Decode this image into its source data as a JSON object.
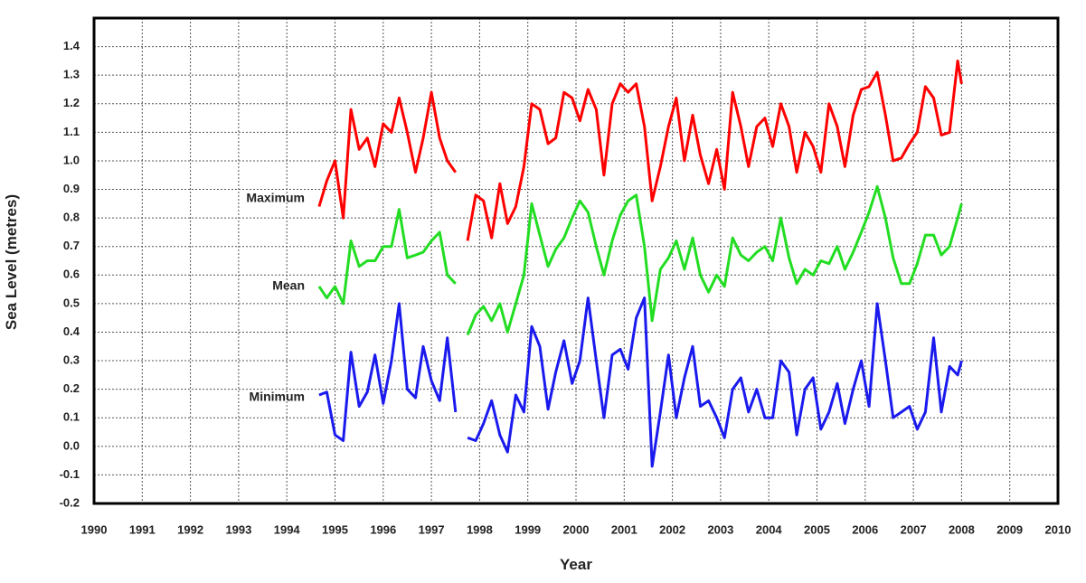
{
  "chart_data": {
    "type": "line",
    "xlabel": "Year",
    "ylabel": "Sea Level (metres)",
    "xlim": [
      1990,
      2010
    ],
    "ylim": [
      -0.2,
      1.5
    ],
    "xticks": [
      1990,
      1991,
      1992,
      1993,
      1994,
      1995,
      1996,
      1997,
      1998,
      1999,
      2000,
      2001,
      2002,
      2003,
      2004,
      2005,
      2006,
      2007,
      2008,
      2009,
      2010
    ],
    "yticks": [
      -0.2,
      -0.1,
      {
        "value": 0,
        "label": "0.0"
      },
      0.1,
      0.2,
      0.3,
      0.4,
      0.5,
      0.6,
      0.7,
      0.8,
      0.9,
      {
        "value": 1,
        "label": "1.0"
      },
      1.1,
      1.2,
      1.3,
      1.4
    ],
    "grid": true,
    "x": [
      1994.67,
      1994.83,
      1995.0,
      1995.17,
      1995.33,
      1995.5,
      1995.67,
      1995.83,
      1996.0,
      1996.17,
      1996.33,
      1996.5,
      1996.67,
      1996.83,
      1997.0,
      1997.17,
      1997.33,
      1997.5,
      1997.6,
      1997.75,
      1997.92,
      1998.08,
      1998.25,
      1998.42,
      1998.58,
      1998.75,
      1998.92,
      1999.08,
      1999.25,
      1999.42,
      1999.58,
      1999.75,
      1999.92,
      2000.08,
      2000.25,
      2000.42,
      2000.58,
      2000.75,
      2000.92,
      2001.08,
      2001.25,
      2001.42,
      2001.58,
      2001.75,
      2001.92,
      2002.08,
      2002.25,
      2002.42,
      2002.58,
      2002.75,
      2002.92,
      2003.08,
      2003.25,
      2003.42,
      2003.58,
      2003.75,
      2003.92,
      2004.08,
      2004.25,
      2004.42,
      2004.58,
      2004.75,
      2004.92,
      2005.08,
      2005.25,
      2005.42,
      2005.58,
      2005.75,
      2005.92,
      2006.08,
      2006.25,
      2006.42,
      2006.58,
      2006.75,
      2006.92,
      2007.08,
      2007.25,
      2007.42,
      2007.58,
      2007.75,
      2007.92,
      2008.0
    ],
    "series": [
      {
        "name": "Maximum",
        "color": "#ff0000",
        "values": [
          0.84,
          0.93,
          1.0,
          0.8,
          1.18,
          1.04,
          1.08,
          0.98,
          1.13,
          1.1,
          1.22,
          1.1,
          0.96,
          1.08,
          1.24,
          1.08,
          1.0,
          0.96,
          null,
          0.72,
          0.88,
          0.86,
          0.73,
          0.92,
          0.78,
          0.84,
          0.98,
          1.2,
          1.18,
          1.06,
          1.08,
          1.24,
          1.22,
          1.14,
          1.25,
          1.18,
          0.95,
          1.2,
          1.27,
          1.24,
          1.27,
          1.12,
          0.86,
          0.98,
          1.12,
          1.22,
          1.0,
          1.16,
          1.02,
          0.92,
          1.04,
          0.9,
          1.24,
          1.12,
          0.98,
          1.12,
          1.15,
          1.05,
          1.2,
          1.12,
          0.96,
          1.1,
          1.05,
          0.96,
          1.2,
          1.12,
          0.98,
          1.16,
          1.25,
          1.26,
          1.31,
          1.16,
          1.0,
          1.01,
          1.06,
          1.1,
          1.26,
          1.22,
          1.09,
          1.1,
          1.35,
          1.27
        ]
      },
      {
        "name": "Mean",
        "color": "#22dd22",
        "values": [
          0.56,
          0.52,
          0.56,
          0.5,
          0.72,
          0.63,
          0.65,
          0.65,
          0.7,
          0.7,
          0.83,
          0.66,
          0.67,
          0.68,
          0.72,
          0.75,
          0.6,
          0.57,
          null,
          0.39,
          0.46,
          0.49,
          0.44,
          0.5,
          0.4,
          0.5,
          0.6,
          0.85,
          0.74,
          0.63,
          0.69,
          0.73,
          0.8,
          0.86,
          0.82,
          0.7,
          0.6,
          0.72,
          0.81,
          0.86,
          0.88,
          0.7,
          0.44,
          0.62,
          0.66,
          0.72,
          0.62,
          0.73,
          0.6,
          0.54,
          0.6,
          0.56,
          0.73,
          0.67,
          0.65,
          0.68,
          0.7,
          0.65,
          0.8,
          0.66,
          0.57,
          0.62,
          0.6,
          0.65,
          0.64,
          0.7,
          0.62,
          0.68,
          0.75,
          0.82,
          0.91,
          0.8,
          0.66,
          0.57,
          0.57,
          0.64,
          0.74,
          0.74,
          0.67,
          0.7,
          0.8,
          0.85
        ]
      },
      {
        "name": "Minimum",
        "color": "#1a1aee",
        "values": [
          0.18,
          0.19,
          0.04,
          0.02,
          0.33,
          0.14,
          0.19,
          0.32,
          0.15,
          0.3,
          0.5,
          0.2,
          0.17,
          0.35,
          0.23,
          0.16,
          0.38,
          0.12,
          null,
          0.03,
          0.02,
          0.08,
          0.16,
          0.04,
          -0.02,
          0.18,
          0.12,
          0.42,
          0.35,
          0.13,
          0.26,
          0.37,
          0.22,
          0.3,
          0.52,
          0.3,
          0.1,
          0.32,
          0.34,
          0.27,
          0.45,
          0.52,
          -0.07,
          0.12,
          0.32,
          0.1,
          0.24,
          0.35,
          0.14,
          0.16,
          0.1,
          0.03,
          0.2,
          0.24,
          0.12,
          0.2,
          0.1,
          0.1,
          0.3,
          0.26,
          0.04,
          0.2,
          0.24,
          0.06,
          0.12,
          0.22,
          0.08,
          0.2,
          0.3,
          0.14,
          0.5,
          0.3,
          0.1,
          0.12,
          0.14,
          0.06,
          0.12,
          0.38,
          0.12,
          0.28,
          0.25,
          0.3
        ]
      }
    ]
  }
}
